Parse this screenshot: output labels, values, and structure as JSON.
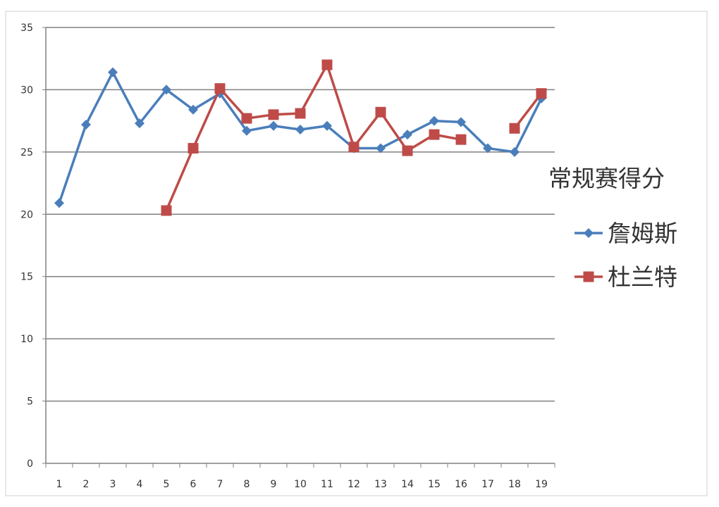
{
  "chart_data": {
    "type": "line",
    "title": "",
    "xlabel": "",
    "ylabel": "",
    "categories": [
      "1",
      "2",
      "3",
      "4",
      "5",
      "6",
      "7",
      "8",
      "9",
      "10",
      "11",
      "12",
      "13",
      "14",
      "15",
      "16",
      "17",
      "18",
      "19"
    ],
    "ylim": [
      0,
      35
    ],
    "yticks": [
      0,
      5,
      10,
      15,
      20,
      25,
      30,
      35
    ],
    "grid": true,
    "legend_position": "right",
    "legend_title": "常规赛得分",
    "series": [
      {
        "name": "詹姆斯",
        "color": "#4a7ebb",
        "marker": "diamond",
        "values": [
          20.9,
          27.2,
          31.4,
          27.3,
          30.0,
          28.4,
          29.7,
          26.7,
          27.1,
          26.8,
          27.1,
          25.3,
          25.3,
          26.4,
          27.5,
          27.4,
          25.3,
          25.0,
          29.3
        ]
      },
      {
        "name": "杜兰特",
        "color": "#be4b48",
        "marker": "square",
        "values": [
          null,
          null,
          null,
          null,
          20.3,
          25.3,
          30.1,
          27.7,
          28.0,
          28.1,
          32.0,
          25.4,
          28.2,
          25.1,
          26.4,
          26.0,
          null,
          26.9,
          29.7
        ]
      }
    ]
  }
}
